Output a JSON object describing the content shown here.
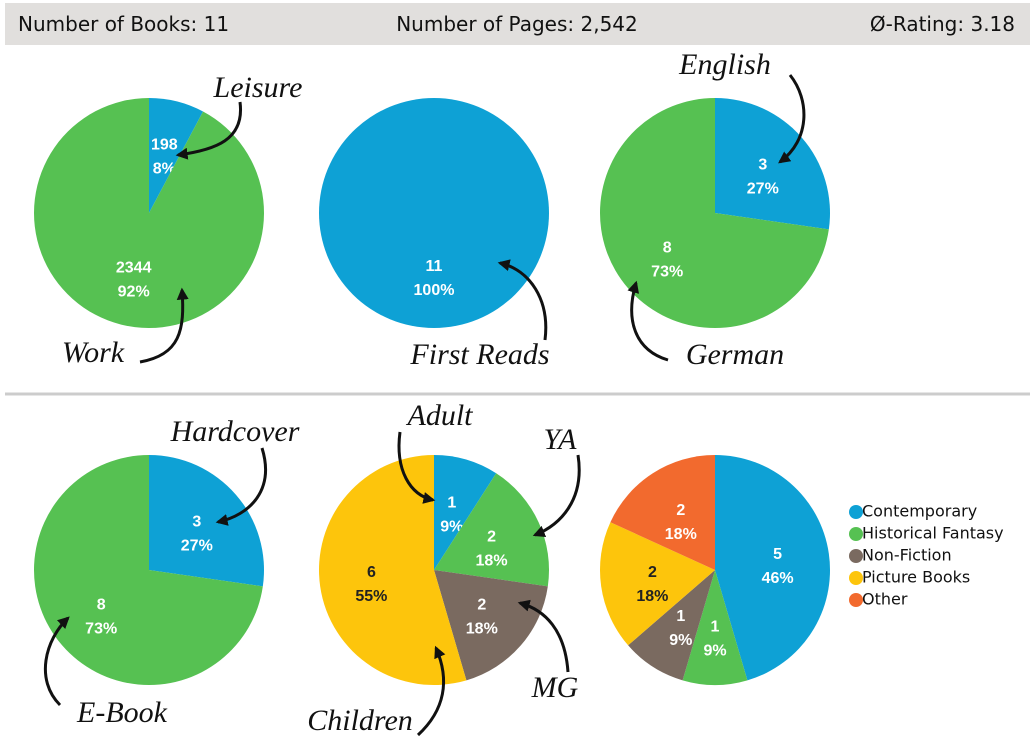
{
  "header": {
    "items": [
      {
        "label": "Number of Books:",
        "value": "11"
      },
      {
        "label": "Number of Pages:",
        "value": "2,542"
      },
      {
        "label": "Ø-Rating:",
        "value": "3.18"
      }
    ]
  },
  "chart_data": [
    {
      "type": "pie",
      "categories": [
        "Leisure",
        "Work"
      ],
      "values": [
        198,
        2344
      ],
      "percent_labels": [
        "8%",
        "92%"
      ],
      "colors": [
        "#0ea1d5",
        "#56c152"
      ]
    },
    {
      "type": "pie",
      "categories": [
        "First Reads"
      ],
      "values": [
        11
      ],
      "percent_labels": [
        "100%"
      ],
      "colors": [
        "#0ea1d5"
      ]
    },
    {
      "type": "pie",
      "categories": [
        "English",
        "German"
      ],
      "values": [
        3,
        8
      ],
      "percent_labels": [
        "27%",
        "73%"
      ],
      "colors": [
        "#0ea1d5",
        "#56c152"
      ]
    },
    {
      "type": "pie",
      "categories": [
        "Hardcover",
        "E-Book"
      ],
      "values": [
        3,
        8
      ],
      "percent_labels": [
        "27%",
        "73%"
      ],
      "colors": [
        "#0ea1d5",
        "#56c152"
      ]
    },
    {
      "type": "pie",
      "categories": [
        "Adult",
        "YA",
        "MG",
        "Children"
      ],
      "values": [
        1,
        2,
        2,
        6
      ],
      "percent_labels": [
        "9%",
        "18%",
        "18%",
        "55%"
      ],
      "colors": [
        "#0ea1d5",
        "#56c152",
        "#7a6a60",
        "#fdc50c"
      ]
    },
    {
      "type": "pie",
      "categories": [
        "Contemporary",
        "Historical Fantasy",
        "Non-Fiction",
        "Picture Books",
        "Other"
      ],
      "values": [
        5,
        1,
        1,
        2,
        2
      ],
      "percent_labels": [
        "46%",
        "9%",
        "9%",
        "18%",
        "18%"
      ],
      "colors": [
        "#0ea1d5",
        "#56c152",
        "#7a6a60",
        "#fdc50c",
        "#f26a2e"
      ],
      "legend": "right"
    }
  ]
}
